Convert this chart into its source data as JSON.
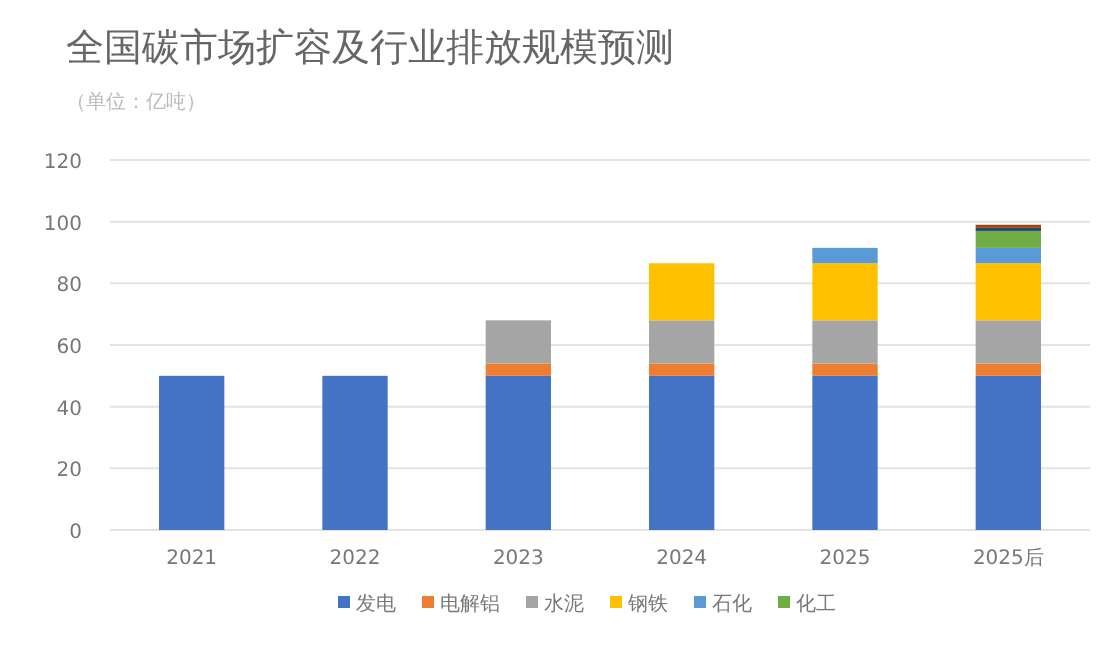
{
  "chart_data": {
    "type": "bar",
    "stacked": true,
    "title": "全国碳市场扩容及行业排放规模预测",
    "subtitle": "（单位：亿吨）",
    "categories": [
      "2021",
      "2022",
      "2023",
      "2024",
      "2025",
      "2025后"
    ],
    "series": [
      {
        "name": "发电",
        "color": "#4472c4",
        "values": [
          50,
          50,
          50,
          50,
          50,
          50
        ]
      },
      {
        "name": "电解铝",
        "color": "#ed7d31",
        "values": [
          null,
          null,
          4,
          4,
          4,
          4
        ]
      },
      {
        "name": "水泥",
        "color": "#a5a5a5",
        "values": [
          null,
          null,
          14,
          14,
          14,
          14
        ]
      },
      {
        "name": "钢铁",
        "color": "#ffc000",
        "values": [
          null,
          null,
          null,
          18.5,
          18.5,
          18.5
        ]
      },
      {
        "name": "石化",
        "color": "#5b9bd5",
        "values": [
          null,
          null,
          null,
          null,
          5,
          5
        ]
      },
      {
        "name": "化工",
        "color": "#70ad47",
        "values": [
          null,
          null,
          null,
          null,
          null,
          5.5
        ]
      },
      {
        "color": "#264478",
        "values": [
          null,
          null,
          null,
          null,
          null,
          1
        ]
      },
      {
        "color": "#9e480e",
        "values": [
          null,
          null,
          null,
          null,
          null,
          1
        ]
      }
    ],
    "ylim": [
      0,
      120
    ],
    "yticks": [
      0,
      20,
      40,
      60,
      80,
      100,
      120
    ],
    "grid": "y",
    "legend": "bottom"
  }
}
